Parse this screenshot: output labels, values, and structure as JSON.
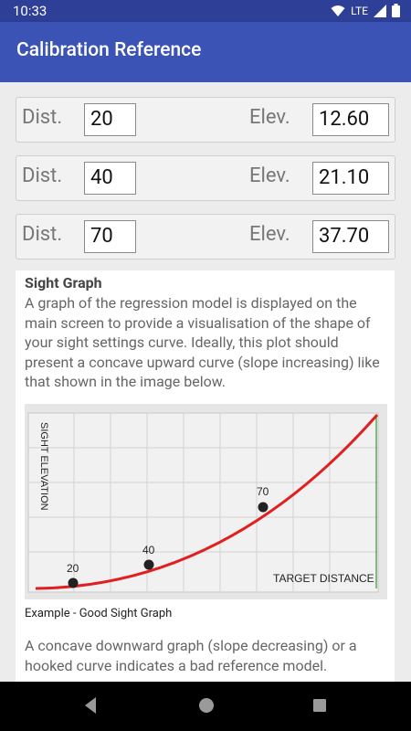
{
  "status_bar": {
    "time": "10:33",
    "network": "LTE"
  },
  "app_bar": {
    "title": "Calibration Reference"
  },
  "rows": [
    {
      "dist_label": "Dist.",
      "dist_value": "20",
      "elev_label": "Elev.",
      "elev_value": "12.60"
    },
    {
      "dist_label": "Dist.",
      "dist_value": "40",
      "elev_label": "Elev.",
      "elev_value": "21.10"
    },
    {
      "dist_label": "Dist.",
      "dist_value": "70",
      "elev_label": "Elev.",
      "elev_value": "37.70"
    }
  ],
  "info": {
    "heading": "Sight Graph",
    "paragraph1": "A graph of the regression model is displayed on the main screen to provide a visualisation of the shape of your sight settings curve. Ideally, this plot should present a concave upward curve (slope increasing) like that shown in the image below.",
    "graph": {
      "y_label": "SIGHT ELEVATION",
      "x_label": "TARGET DISTANCE",
      "points": [
        {
          "label": "20"
        },
        {
          "label": "40"
        },
        {
          "label": "70"
        }
      ]
    },
    "caption": "Example - Good Sight Graph",
    "paragraph2": "A concave downward graph (slope decreasing) or a hooked curve indicates a bad reference model."
  }
}
